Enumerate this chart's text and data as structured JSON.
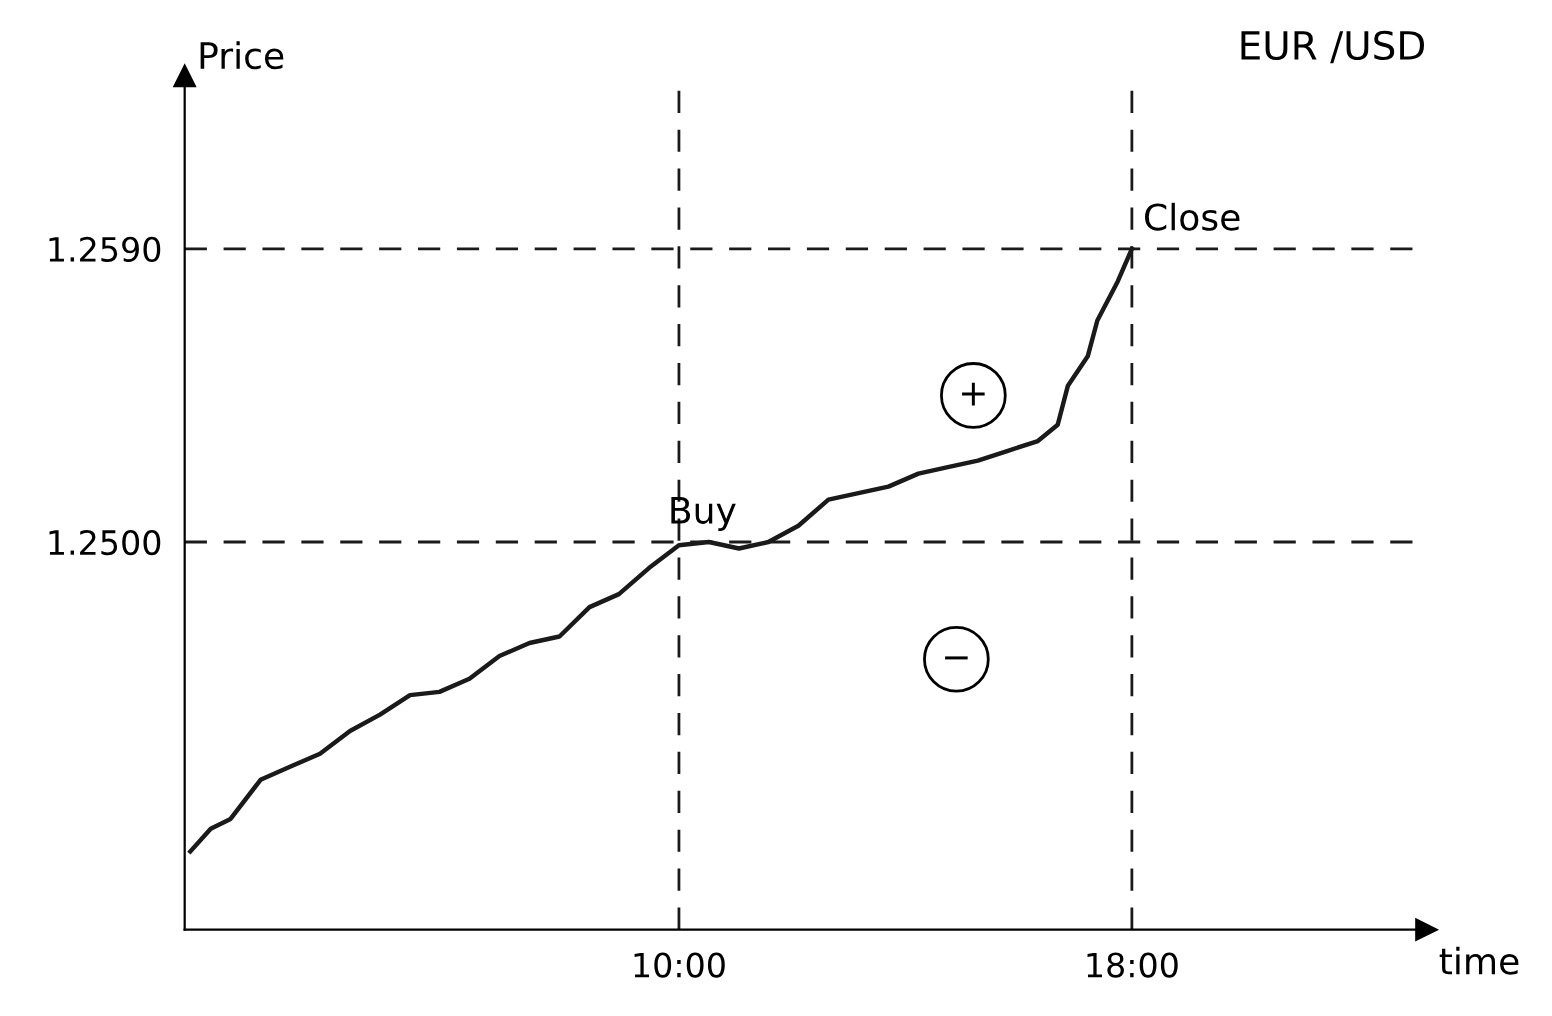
{
  "chart_data": {
    "type": "line",
    "title": "EUR /USD",
    "xlabel": "time",
    "ylabel": "Price",
    "xlim": [
      1.27,
      23.2
    ],
    "ylim": [
      1.2381,
      1.2643
    ],
    "xticks": [
      {
        "value": 10,
        "label": "10:00"
      },
      {
        "value": 18,
        "label": "18:00"
      }
    ],
    "yticks": [
      {
        "value": 1.25,
        "label": "1.2500"
      },
      {
        "value": 1.259,
        "label": "1.2590"
      }
    ],
    "grid": false,
    "legend": false,
    "marker": "none",
    "line_style": "solid",
    "series": [
      {
        "color": "#1a1a1a",
        "x": [
          1.37,
          1.73,
          2.08,
          2.61,
          3.13,
          3.66,
          4.19,
          4.72,
          5.25,
          5.77,
          6.3,
          6.83,
          7.36,
          7.89,
          8.42,
          8.94,
          9.47,
          10,
          10.53,
          11.06,
          11.58,
          12.11,
          12.64,
          13.17,
          13.7,
          14.23,
          14.75,
          15.28,
          15.81,
          16.34,
          16.69,
          16.87,
          17.22,
          17.39,
          17.75,
          18
        ],
        "values": [
          1.2405,
          1.2412,
          1.2415,
          1.2427,
          1.2431,
          1.2435,
          1.2442,
          1.2447,
          1.2453,
          1.2454,
          1.2458,
          1.2465,
          1.2469,
          1.2471,
          1.248,
          1.2484,
          1.2492,
          1.2499,
          1.25,
          1.2498,
          1.25,
          1.2505,
          1.2513,
          1.2515,
          1.2517,
          1.2521,
          1.2523,
          1.2525,
          1.2528,
          1.2531,
          1.2536,
          1.2548,
          1.2557,
          1.2568,
          1.258,
          1.259
        ]
      }
    ],
    "ref_lines": [
      {
        "axis": "y",
        "value": 1.25,
        "line_style": "dashed",
        "color": "#1a1a1a"
      },
      {
        "axis": "y",
        "value": 1.259,
        "line_style": "dashed",
        "color": "#1a1a1a"
      },
      {
        "axis": "x",
        "value": 10,
        "line_style": "dashed",
        "color": "#1a1a1a"
      },
      {
        "axis": "x",
        "value": 18,
        "line_style": "dashed",
        "color": "#1a1a1a"
      }
    ],
    "annotations": [
      {
        "text": "Close",
        "x": 18,
        "y": 1.259
      },
      {
        "text": "Buy",
        "x": 10,
        "y": 1.25
      },
      {
        "text": "+",
        "x": 15.2,
        "y": 1.2545
      },
      {
        "text": "−",
        "x": 14.9,
        "y": 1.2464
      }
    ]
  }
}
